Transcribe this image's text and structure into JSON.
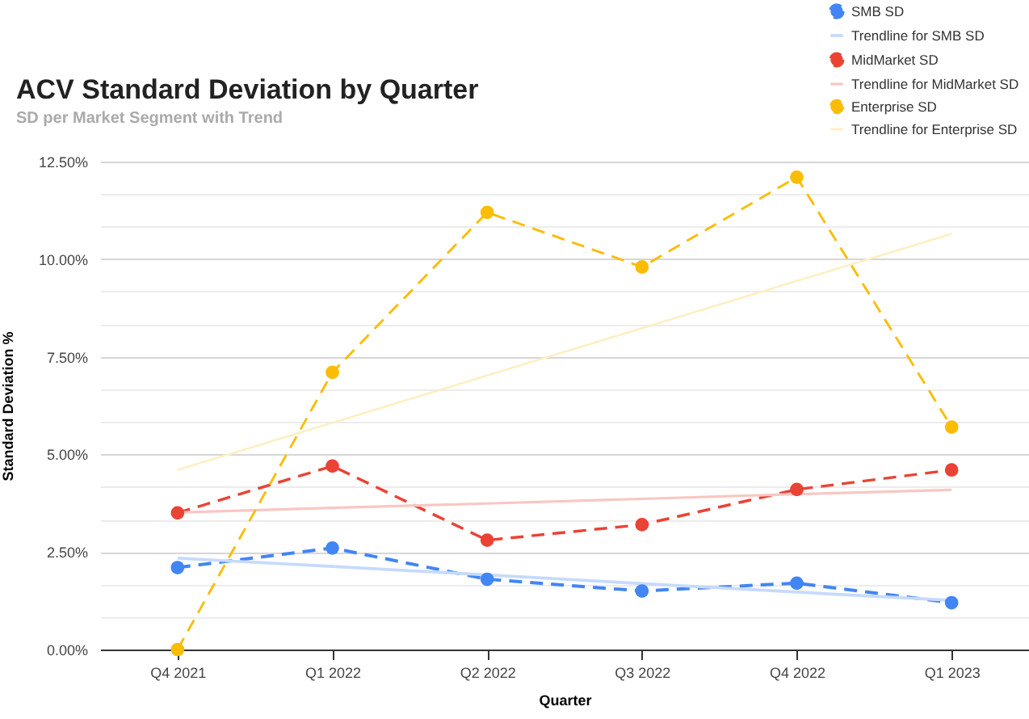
{
  "chart_data": {
    "type": "line",
    "title": "ACV Standard Deviation by Quarter",
    "subtitle": "SD per Market Segment with Trend",
    "xlabel": "Quarter",
    "ylabel": "Standard Deviation %",
    "categories": [
      "Q4 2021",
      "Q1 2022",
      "Q2 2022",
      "Q3 2022",
      "Q4 2022",
      "Q1 2023"
    ],
    "ylim": [
      0,
      12.5
    ],
    "yticks": [
      {
        "value": 0,
        "label": "0.00%"
      },
      {
        "value": 0.83,
        "label": null
      },
      {
        "value": 1.67,
        "label": null
      },
      {
        "value": 2.5,
        "label": "2.50%"
      },
      {
        "value": 3.33,
        "label": null
      },
      {
        "value": 4.17,
        "label": null
      },
      {
        "value": 5,
        "label": "5.00%"
      },
      {
        "value": 5.83,
        "label": null
      },
      {
        "value": 6.67,
        "label": null
      },
      {
        "value": 7.5,
        "label": "7.50%"
      },
      {
        "value": 8.33,
        "label": null
      },
      {
        "value": 9.17,
        "label": null
      },
      {
        "value": 10,
        "label": "10.00%"
      },
      {
        "value": 10.83,
        "label": null
      },
      {
        "value": 11.67,
        "label": null
      },
      {
        "value": 12.5,
        "label": "12.50%"
      }
    ],
    "grid": "y",
    "legend": "top right",
    "series": [
      {
        "name": "SMB SD",
        "color": "#4285f4",
        "marker": "circle",
        "line_style": "dashed",
        "values": [
          2.1,
          2.6,
          1.8,
          1.5,
          1.7,
          1.2
        ]
      },
      {
        "name": "Trendline for SMB SD",
        "color": "#c6dafc",
        "marker": "none",
        "line_style": "solid",
        "values": [
          2.34,
          2.13,
          1.91,
          1.69,
          1.47,
          1.26
        ]
      },
      {
        "name": "MidMarket SD",
        "color": "#ea4335",
        "marker": "circle",
        "line_style": "dashed",
        "values": [
          3.5,
          4.7,
          2.8,
          3.2,
          4.1,
          4.6
        ]
      },
      {
        "name": "Trendline for MidMarket SD",
        "color": "#f8c7c3",
        "marker": "none",
        "line_style": "solid",
        "values": [
          3.51,
          3.63,
          3.74,
          3.86,
          3.98,
          4.09
        ]
      },
      {
        "name": "Enterprise SD",
        "color": "#fbbc04",
        "marker": "circle",
        "line_style": "dashed",
        "values": [
          0,
          7.1,
          11.2,
          9.8,
          12.1,
          5.7
        ]
      },
      {
        "name": "Trendline for Enterprise SD",
        "color": "#feefc3",
        "marker": "none",
        "line_style": "solid",
        "values": [
          4.6,
          5.81,
          7.02,
          8.23,
          9.44,
          10.65
        ]
      }
    ]
  }
}
